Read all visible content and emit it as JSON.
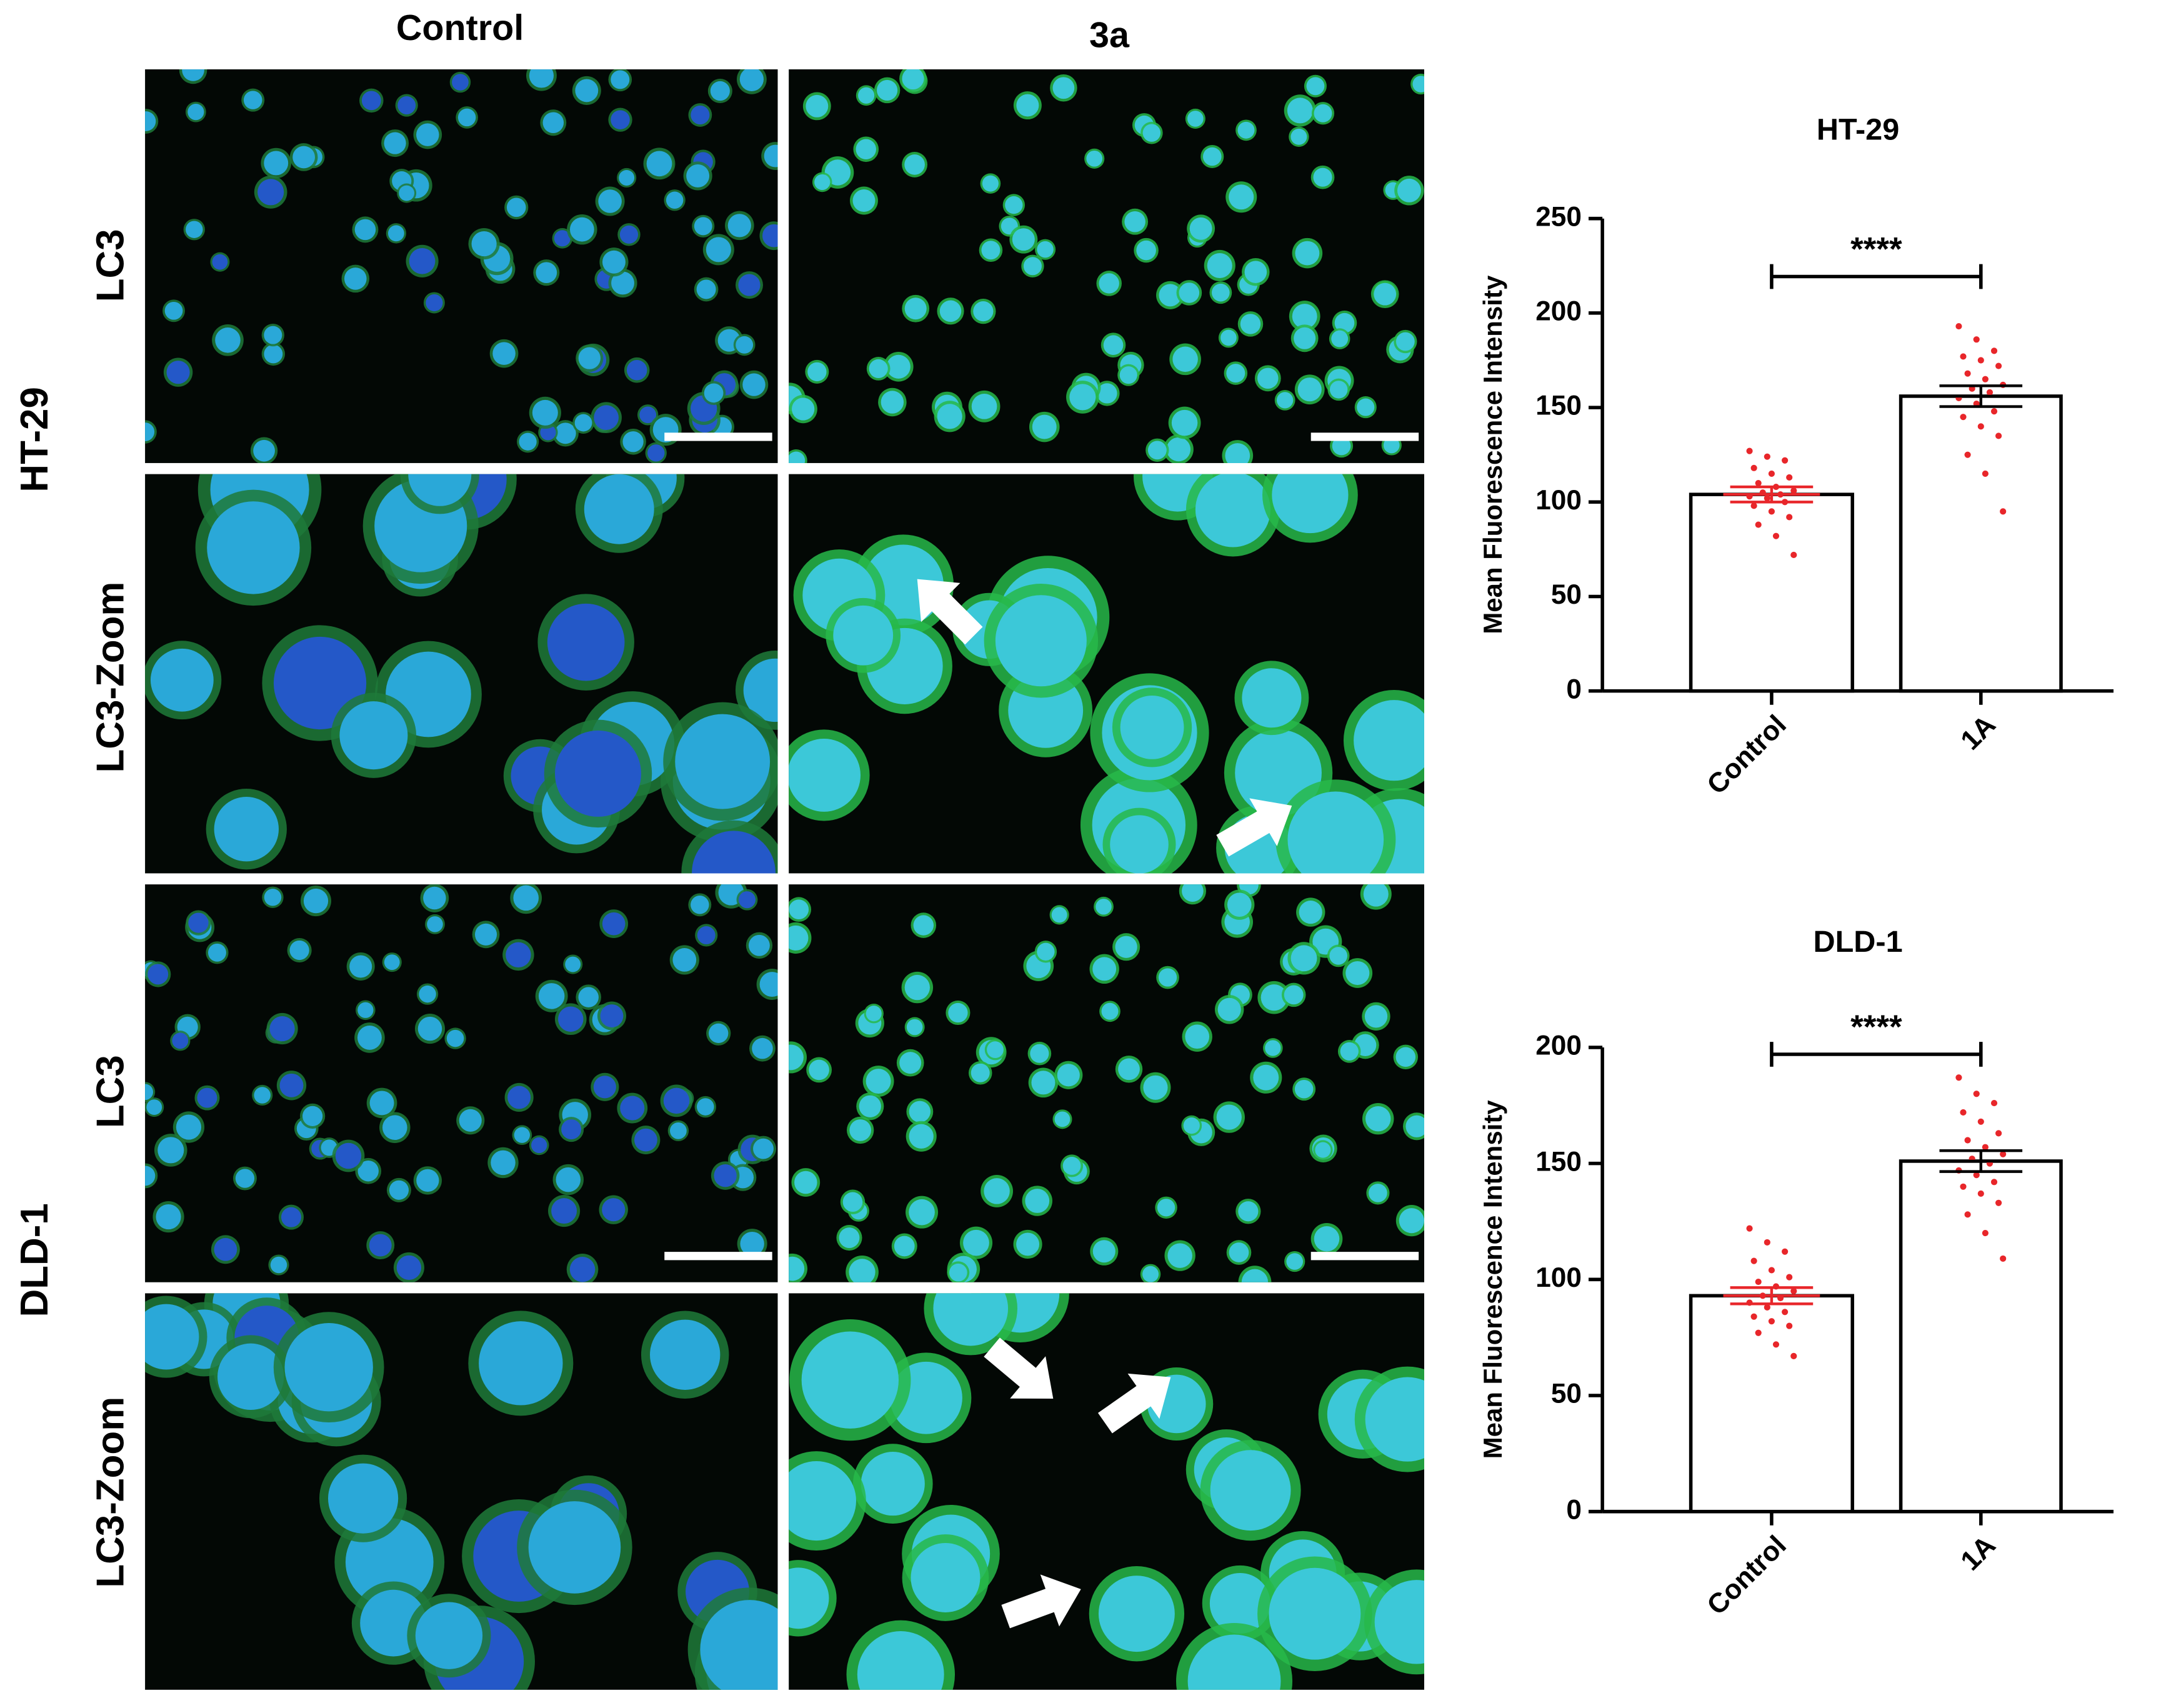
{
  "panels": {
    "columns": [
      "Control",
      "3a"
    ],
    "rows": [
      "LC3",
      "LC3-Zoom",
      "LC3",
      "LC3-Zoom"
    ],
    "cell_lines": [
      "HT-29",
      "DLD-1"
    ]
  },
  "chart_data": [
    {
      "type": "bar",
      "title": "HT-29",
      "y_label": "Mean Fluorescence Intensity",
      "categories": [
        "Control",
        "1A"
      ],
      "values": [
        104,
        156
      ],
      "errors": [
        4,
        5.5
      ],
      "points": [
        [
          127,
          124,
          122,
          118,
          115,
          113,
          110,
          108,
          106,
          105,
          104,
          103,
          102,
          100,
          98,
          95,
          92,
          88,
          82,
          72
        ],
        [
          193,
          186,
          180,
          177,
          175,
          172,
          168,
          165,
          162,
          160,
          158,
          155,
          152,
          148,
          145,
          140,
          135,
          125,
          115,
          95
        ]
      ],
      "color": "#ffffff",
      "point_color": "#e8262a",
      "annotation": "****",
      "ylim": [
        0,
        250
      ],
      "yticks": [
        0,
        50,
        100,
        150,
        200,
        250
      ]
    },
    {
      "type": "bar",
      "title": "DLD-1",
      "y_label": "Mean Fluorescence Intensity",
      "categories": [
        "Control",
        "1A"
      ],
      "values": [
        93,
        151
      ],
      "errors": [
        3.5,
        4.5
      ],
      "points": [
        [
          122,
          116,
          112,
          108,
          104,
          101,
          99,
          97,
          95,
          93,
          92,
          90,
          88,
          86,
          84,
          82,
          80,
          77,
          72,
          67
        ],
        [
          187,
          180,
          176,
          172,
          168,
          163,
          160,
          157,
          154,
          152,
          150,
          147,
          145,
          142,
          140,
          137,
          133,
          128,
          120,
          109
        ]
      ],
      "color": "#ffffff",
      "point_color": "#e8262a",
      "annotation": "****",
      "ylim": [
        0,
        200
      ],
      "yticks": [
        0,
        50,
        100,
        150,
        200
      ]
    }
  ]
}
